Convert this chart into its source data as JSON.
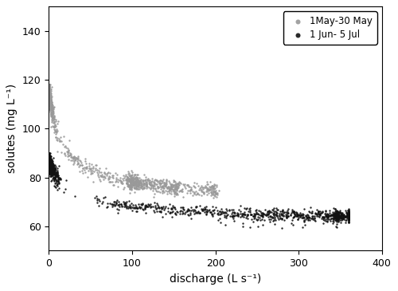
{
  "xlabel": "discharge (L s⁻¹)",
  "ylabel": "solutes (mg L⁻¹)",
  "xlim": [
    0,
    400
  ],
  "ylim": [
    50,
    150
  ],
  "yticks": [
    60,
    80,
    100,
    120,
    140
  ],
  "xticks": [
    0,
    100,
    200,
    300,
    400
  ],
  "legend_labels": [
    "1May-30 May",
    "1 Jun- 5 Jul"
  ],
  "series1_color": "#999999",
  "series2_color": "#111111",
  "marker_size": 3,
  "seed": 7
}
